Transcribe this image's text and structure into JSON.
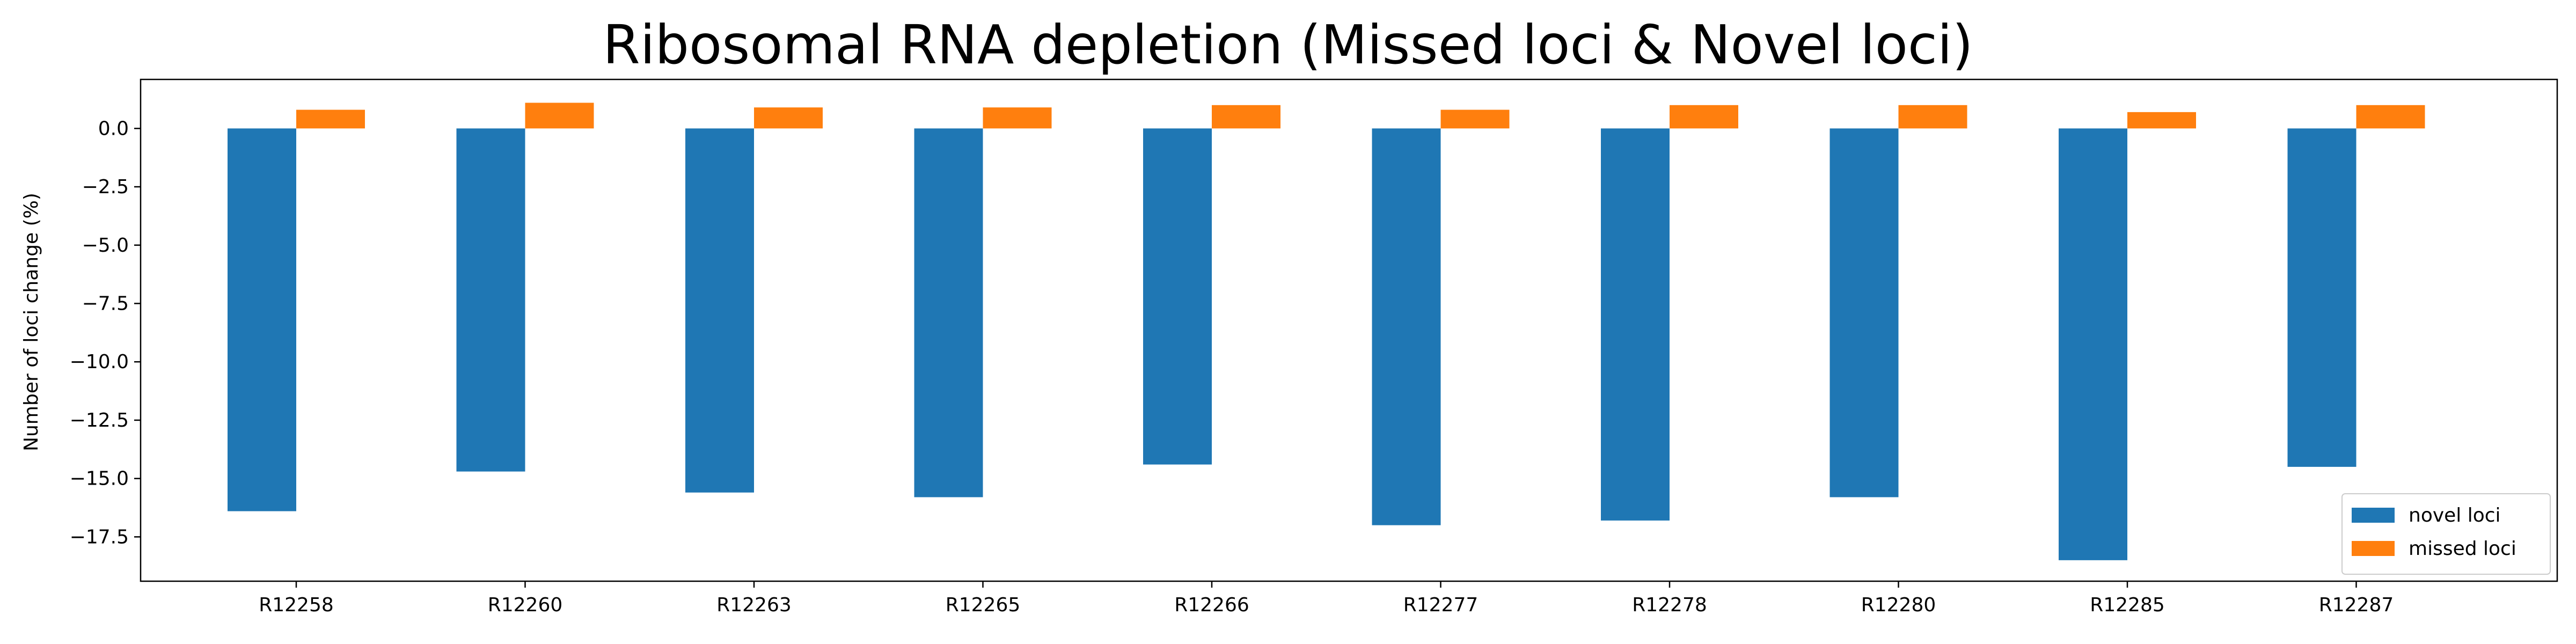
{
  "chart_data": {
    "type": "bar",
    "title": "Ribosomal RNA depletion (Missed loci & Novel loci)",
    "xlabel": "",
    "ylabel": "Number of loci change (%)",
    "categories": [
      "R12258",
      "R12260",
      "R12263",
      "R12265",
      "R12266",
      "R12277",
      "R12278",
      "R12280",
      "R12285",
      "R12287"
    ],
    "series": [
      {
        "name": "novel loci",
        "color": "#1f77b4",
        "values": [
          -16.4,
          -14.7,
          -15.6,
          -15.8,
          -14.4,
          -17.0,
          -16.8,
          -15.8,
          -18.5,
          -14.5
        ]
      },
      {
        "name": "missed loci",
        "color": "#ff7f0e",
        "values": [
          0.8,
          1.1,
          0.9,
          0.9,
          1.0,
          0.8,
          1.0,
          1.0,
          0.7,
          1.0
        ]
      }
    ],
    "ylim": [
      -19.4,
      2.1
    ],
    "yticks": [
      "0.0",
      "−2.5",
      "−5.0",
      "−7.5",
      "−10.0",
      "−12.5",
      "−15.0",
      "−17.5"
    ],
    "ytick_values": [
      0,
      -2.5,
      -5,
      -7.5,
      -10,
      -12.5,
      -15,
      -17.5
    ],
    "grid": false,
    "legend_position": "lower-right"
  }
}
